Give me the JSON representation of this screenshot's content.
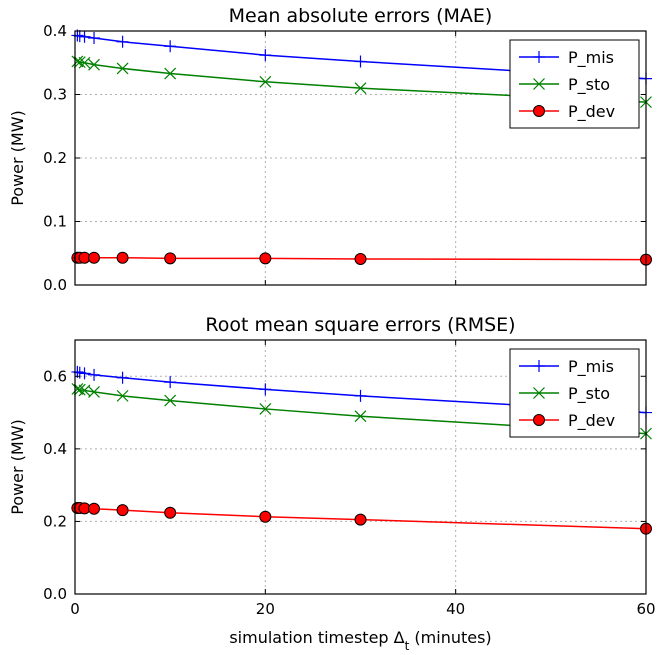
{
  "chart_data": [
    {
      "type": "line",
      "title": "Mean absolute errors (MAE)",
      "xlabel": "",
      "ylabel": "Power (MW)",
      "xlim": [
        0,
        60
      ],
      "ylim": [
        0,
        0.4
      ],
      "xticks": [
        0,
        20,
        40,
        60
      ],
      "xtick_labels": [
        "",
        "",
        "",
        ""
      ],
      "yticks": [
        0.0,
        0.1,
        0.2,
        0.3,
        0.4
      ],
      "ytick_labels": [
        "0.0",
        "0.1",
        "0.2",
        "0.3",
        "0.4"
      ],
      "grid": true,
      "legend_position": "top-right",
      "x": [
        0.25,
        0.5,
        1,
        2,
        5,
        10,
        20,
        30,
        60
      ],
      "series": [
        {
          "name": "P_mis",
          "color": "#0000ff",
          "marker": "plus",
          "values": [
            0.393,
            0.392,
            0.391,
            0.389,
            0.383,
            0.376,
            0.362,
            0.352,
            0.325
          ]
        },
        {
          "name": "P_sto",
          "color": "#008000",
          "marker": "x",
          "values": [
            0.352,
            0.351,
            0.35,
            0.347,
            0.341,
            0.333,
            0.32,
            0.31,
            0.288
          ]
        },
        {
          "name": "P_dev",
          "color": "#ff0000",
          "marker": "circle",
          "values": [
            0.043,
            0.043,
            0.043,
            0.043,
            0.043,
            0.042,
            0.042,
            0.041,
            0.04
          ]
        }
      ]
    },
    {
      "type": "line",
      "title": "Root mean square errors (RMSE)",
      "xlabel": "simulation timestep Δt (minutes)",
      "ylabel": "Power (MW)",
      "xlim": [
        0,
        60
      ],
      "ylim": [
        0,
        0.7
      ],
      "xticks": [
        0,
        20,
        40,
        60
      ],
      "xtick_labels": [
        "0",
        "20",
        "40",
        "60"
      ],
      "yticks": [
        0.0,
        0.2,
        0.4,
        0.6
      ],
      "ytick_labels": [
        "0.0",
        "0.2",
        "0.4",
        "0.6"
      ],
      "grid": true,
      "legend_position": "top-right",
      "x": [
        0.25,
        0.5,
        1,
        2,
        5,
        10,
        20,
        30,
        60
      ],
      "series": [
        {
          "name": "P_mis",
          "color": "#0000ff",
          "marker": "plus",
          "values": [
            0.612,
            0.61,
            0.608,
            0.604,
            0.596,
            0.584,
            0.564,
            0.546,
            0.5
          ]
        },
        {
          "name": "P_sto",
          "color": "#008000",
          "marker": "x",
          "values": [
            0.565,
            0.563,
            0.561,
            0.557,
            0.546,
            0.533,
            0.51,
            0.49,
            0.442
          ]
        },
        {
          "name": "P_dev",
          "color": "#ff0000",
          "marker": "circle",
          "values": [
            0.237,
            0.237,
            0.236,
            0.235,
            0.231,
            0.224,
            0.213,
            0.205,
            0.18
          ]
        }
      ]
    }
  ]
}
